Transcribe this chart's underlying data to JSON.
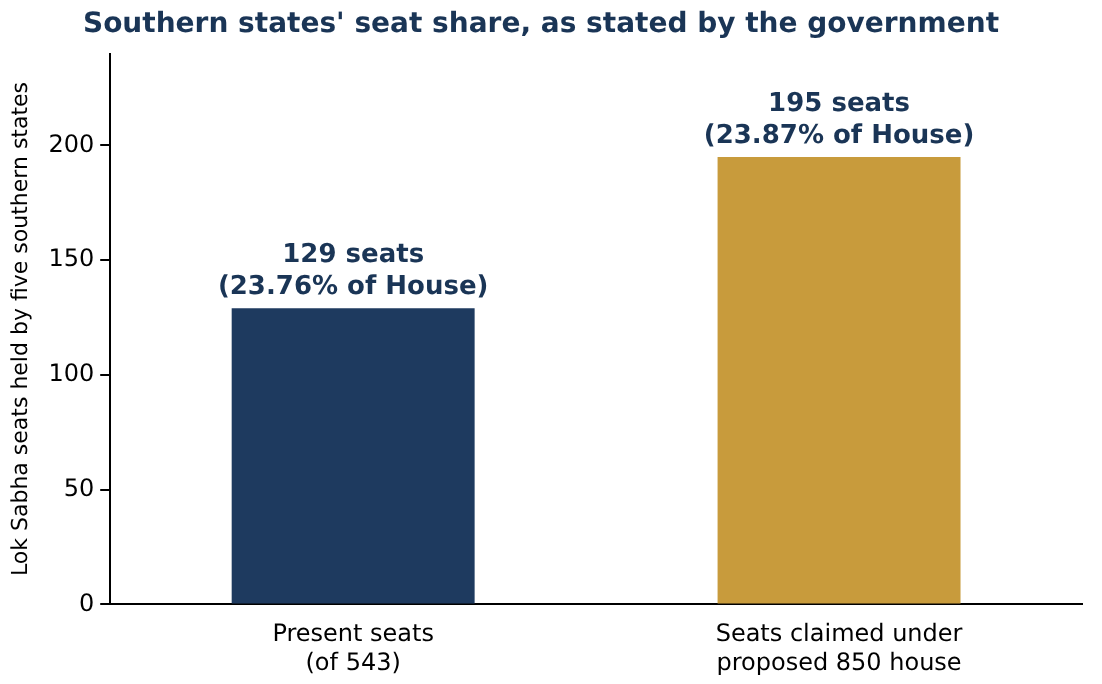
{
  "chart_data": {
    "type": "bar",
    "title": "Southern states' seat share, as stated by the government",
    "ylabel": "Lok Sabha seats held by five southern states",
    "categories": [
      "Present seats\n(of 543)",
      "Seats claimed under\nproposed 850 house"
    ],
    "values": [
      129,
      195
    ],
    "colors": [
      "#1e3a5f",
      "#c89b3c"
    ],
    "value_labels": [
      "129 seats\n(23.76% of House)",
      "195 seats\n(23.87% of House)"
    ],
    "ylim": [
      0,
      240
    ],
    "yticks": [
      0,
      50,
      100,
      150,
      200
    ],
    "grid": false,
    "legend": false
  }
}
